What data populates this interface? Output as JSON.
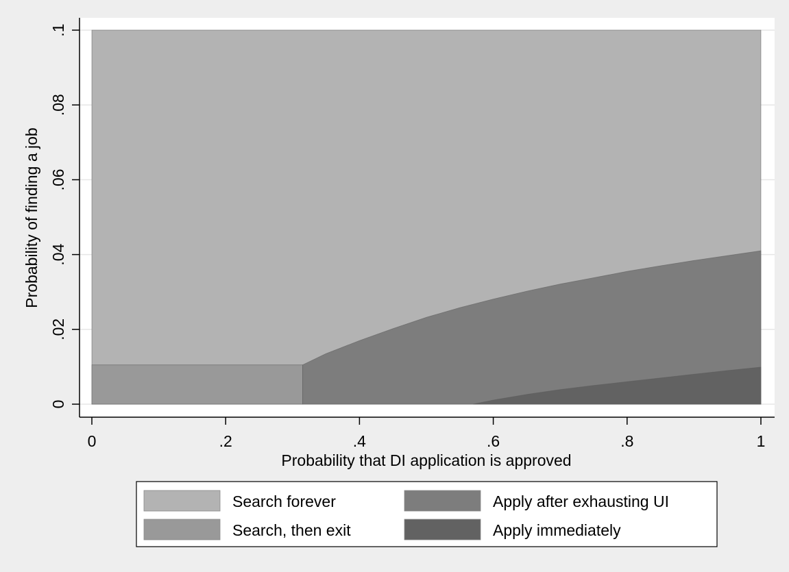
{
  "chart_data": {
    "type": "area",
    "xlabel": "Probability that DI application is approved",
    "ylabel": "Probability of finding a job",
    "xlim": [
      0,
      1
    ],
    "ylim": [
      0,
      0.1
    ],
    "x_ticks": [
      {
        "value": 0,
        "label": "0"
      },
      {
        "value": 0.2,
        "label": ".2"
      },
      {
        "value": 0.4,
        "label": ".4"
      },
      {
        "value": 0.6,
        "label": ".6"
      },
      {
        "value": 0.8,
        "label": ".8"
      },
      {
        "value": 1,
        "label": "1"
      }
    ],
    "y_ticks": [
      {
        "value": 0,
        "label": "0"
      },
      {
        "value": 0.02,
        "label": ".02"
      },
      {
        "value": 0.04,
        "label": ".04"
      },
      {
        "value": 0.06,
        "label": ".06"
      },
      {
        "value": 0.08,
        "label": ".08"
      },
      {
        "value": 0.1,
        "label": ".1"
      }
    ],
    "grid": true,
    "legend_position": "bottom",
    "series": [
      {
        "name": "Search forever",
        "color": "#b3b3b3",
        "x": [
          0,
          1
        ],
        "lower": [
          0,
          0
        ],
        "upper": [
          0.1,
          0.1
        ]
      },
      {
        "name": "Search, then exit",
        "color": "#999999",
        "x": [
          0,
          0.315
        ],
        "lower": [
          0,
          0
        ],
        "upper": [
          0.0105,
          0.0105
        ]
      },
      {
        "name": "Apply after exhausting UI",
        "color": "#7d7d7d",
        "x": [
          0.315,
          0.35,
          0.4,
          0.45,
          0.5,
          0.55,
          0.6,
          0.65,
          0.7,
          0.75,
          0.8,
          0.85,
          0.9,
          0.95,
          1.0
        ],
        "lower": [
          0,
          0,
          0,
          0,
          0,
          0,
          0,
          0,
          0,
          0,
          0,
          0,
          0,
          0,
          0
        ],
        "upper": [
          0.0105,
          0.0135,
          0.017,
          0.0202,
          0.0232,
          0.0258,
          0.0281,
          0.0302,
          0.0321,
          0.0338,
          0.0355,
          0.037,
          0.0384,
          0.0397,
          0.041
        ]
      },
      {
        "name": "Apply immediately",
        "color": "#626262",
        "x": [
          0.57,
          0.6,
          0.65,
          0.7,
          0.75,
          0.8,
          0.85,
          0.9,
          0.95,
          1.0
        ],
        "lower": [
          0,
          0,
          0,
          0,
          0,
          0,
          0,
          0,
          0,
          0
        ],
        "upper": [
          0,
          0.0011,
          0.0026,
          0.0039,
          0.005,
          0.006,
          0.007,
          0.008,
          0.009,
          0.0099
        ]
      }
    ],
    "legend_entries": [
      "Search forever",
      "Apply after exhausting UI",
      "Search, then exit",
      "Apply immediately"
    ]
  }
}
